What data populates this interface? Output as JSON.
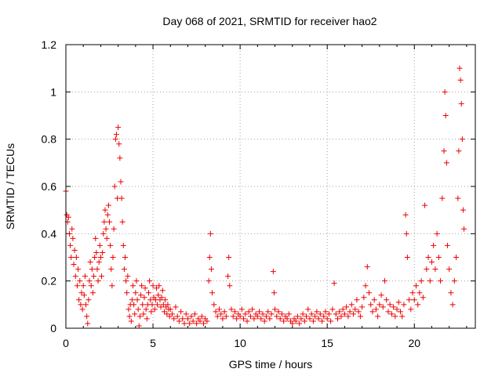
{
  "chart_data": {
    "type": "scatter",
    "title": "Day 068 of 2021, SRMTID for receiver hao2",
    "xlabel": "GPS time / hours",
    "ylabel": "SRMTID / TECUs",
    "xlim": [
      0,
      23.5
    ],
    "ylim": [
      0,
      1.2
    ],
    "xticks": [
      0,
      5,
      10,
      15,
      20
    ],
    "xtick_labels": [
      "0",
      "5",
      "10",
      "15",
      "20"
    ],
    "yticks": [
      0,
      0.2,
      0.4,
      0.6,
      0.8,
      1,
      1.2
    ],
    "ytick_labels": [
      "0",
      "0.2",
      "0.4",
      "0.6",
      "0.8",
      "1",
      "1.2"
    ],
    "grid": true,
    "marker": "plus",
    "color": "#ee0000",
    "series": [
      {
        "name": "SRMTID",
        "points": [
          [
            0.0,
            0.58
          ],
          [
            0.05,
            0.48
          ],
          [
            0.1,
            0.45
          ],
          [
            0.15,
            0.47
          ],
          [
            0.2,
            0.4
          ],
          [
            0.25,
            0.35
          ],
          [
            0.3,
            0.3
          ],
          [
            0.35,
            0.42
          ],
          [
            0.4,
            0.38
          ],
          [
            0.45,
            0.27
          ],
          [
            0.5,
            0.33
          ],
          [
            0.55,
            0.22
          ],
          [
            0.6,
            0.3
          ],
          [
            0.65,
            0.18
          ],
          [
            0.7,
            0.25
          ],
          [
            0.75,
            0.12
          ],
          [
            0.8,
            0.2
          ],
          [
            0.85,
            0.1
          ],
          [
            0.9,
            0.15
          ],
          [
            0.95,
            0.08
          ],
          [
            1.0,
            0.18
          ],
          [
            1.05,
            0.14
          ],
          [
            1.1,
            0.22
          ],
          [
            1.15,
            0.1
          ],
          [
            1.2,
            0.05
          ],
          [
            1.25,
            0.02
          ],
          [
            1.3,
            0.12
          ],
          [
            1.35,
            0.2
          ],
          [
            1.4,
            0.28
          ],
          [
            1.45,
            0.18
          ],
          [
            1.5,
            0.25
          ],
          [
            1.55,
            0.15
          ],
          [
            1.6,
            0.22
          ],
          [
            1.65,
            0.3
          ],
          [
            1.7,
            0.38
          ],
          [
            1.75,
            0.32
          ],
          [
            1.8,
            0.25
          ],
          [
            1.85,
            0.2
          ],
          [
            1.9,
            0.28
          ],
          [
            1.95,
            0.35
          ],
          [
            2.0,
            0.3
          ],
          [
            2.05,
            0.22
          ],
          [
            2.1,
            0.32
          ],
          [
            2.15,
            0.4
          ],
          [
            2.2,
            0.45
          ],
          [
            2.25,
            0.5
          ],
          [
            2.3,
            0.42
          ],
          [
            2.35,
            0.38
          ],
          [
            2.4,
            0.48
          ],
          [
            2.45,
            0.52
          ],
          [
            2.5,
            0.45
          ],
          [
            2.55,
            0.35
          ],
          [
            2.6,
            0.25
          ],
          [
            2.65,
            0.18
          ],
          [
            2.7,
            0.3
          ],
          [
            2.75,
            0.42
          ],
          [
            2.8,
            0.6
          ],
          [
            2.85,
            0.8
          ],
          [
            2.9,
            0.82
          ],
          [
            2.95,
            0.55
          ],
          [
            3.0,
            0.85
          ],
          [
            3.05,
            0.78
          ],
          [
            3.1,
            0.72
          ],
          [
            3.15,
            0.62
          ],
          [
            3.2,
            0.55
          ],
          [
            3.25,
            0.45
          ],
          [
            3.3,
            0.35
          ],
          [
            3.35,
            0.25
          ],
          [
            3.4,
            0.3
          ],
          [
            3.45,
            0.2
          ],
          [
            3.5,
            0.15
          ],
          [
            3.55,
            0.22
          ],
          [
            3.6,
            0.08
          ],
          [
            3.65,
            0.05
          ],
          [
            3.7,
            0.1
          ],
          [
            3.75,
            0.03
          ],
          [
            3.8,
            0.12
          ],
          [
            3.85,
            0.18
          ],
          [
            3.9,
            0.1
          ],
          [
            3.95,
            0.06
          ],
          [
            4.0,
            0.15
          ],
          [
            4.05,
            0.2
          ],
          [
            4.1,
            0.12
          ],
          [
            4.15,
            0.08
          ],
          [
            4.2,
            0.01
          ],
          [
            4.25,
            0.05
          ],
          [
            4.3,
            0.14
          ],
          [
            4.35,
            0.18
          ],
          [
            4.4,
            0.1
          ],
          [
            4.45,
            0.06
          ],
          [
            4.5,
            0.13
          ],
          [
            4.55,
            0.17
          ],
          [
            4.6,
            0.08
          ],
          [
            4.65,
            0.04
          ],
          [
            4.7,
            0.1
          ],
          [
            4.75,
            0.15
          ],
          [
            4.8,
            0.2
          ],
          [
            4.85,
            0.12
          ],
          [
            4.9,
            0.07
          ],
          [
            4.95,
            0.1
          ],
          [
            5.0,
            0.18
          ],
          [
            5.05,
            0.13
          ],
          [
            5.1,
            0.08
          ],
          [
            5.15,
            0.12
          ],
          [
            5.2,
            0.17
          ],
          [
            5.25,
            0.1
          ],
          [
            5.3,
            0.14
          ],
          [
            5.35,
            0.18
          ],
          [
            5.4,
            0.12
          ],
          [
            5.45,
            0.09
          ],
          [
            5.5,
            0.13
          ],
          [
            5.55,
            0.16
          ],
          [
            5.6,
            0.1
          ],
          [
            5.65,
            0.07
          ],
          [
            5.7,
            0.12
          ],
          [
            5.75,
            0.09
          ],
          [
            5.8,
            0.06
          ],
          [
            5.85,
            0.1
          ],
          [
            5.9,
            0.08
          ],
          [
            5.95,
            0.05
          ],
          [
            6.0,
            0.08
          ],
          [
            6.1,
            0.06
          ],
          [
            6.2,
            0.04
          ],
          [
            6.3,
            0.09
          ],
          [
            6.4,
            0.05
          ],
          [
            6.5,
            0.03
          ],
          [
            6.6,
            0.07
          ],
          [
            6.7,
            0.04
          ],
          [
            6.8,
            0.02
          ],
          [
            6.9,
            0.06
          ],
          [
            7.0,
            0.04
          ],
          [
            7.1,
            0.02
          ],
          [
            7.2,
            0.05
          ],
          [
            7.3,
            0.03
          ],
          [
            7.4,
            0.06
          ],
          [
            7.5,
            0.02
          ],
          [
            7.6,
            0.04
          ],
          [
            7.7,
            0.03
          ],
          [
            7.8,
            0.05
          ],
          [
            7.9,
            0.02
          ],
          [
            8.0,
            0.04
          ],
          [
            8.1,
            0.03
          ],
          [
            8.2,
            0.2
          ],
          [
            8.25,
            0.3
          ],
          [
            8.3,
            0.4
          ],
          [
            8.35,
            0.25
          ],
          [
            8.4,
            0.15
          ],
          [
            8.5,
            0.1
          ],
          [
            8.6,
            0.07
          ],
          [
            8.7,
            0.05
          ],
          [
            8.8,
            0.08
          ],
          [
            8.9,
            0.06
          ],
          [
            9.0,
            0.04
          ],
          [
            9.1,
            0.07
          ],
          [
            9.2,
            0.05
          ],
          [
            9.3,
            0.22
          ],
          [
            9.35,
            0.3
          ],
          [
            9.4,
            0.18
          ],
          [
            9.5,
            0.08
          ],
          [
            9.6,
            0.05
          ],
          [
            9.7,
            0.07
          ],
          [
            9.8,
            0.04
          ],
          [
            9.9,
            0.06
          ],
          [
            10.0,
            0.05
          ],
          [
            10.1,
            0.08
          ],
          [
            10.2,
            0.04
          ],
          [
            10.3,
            0.06
          ],
          [
            10.4,
            0.03
          ],
          [
            10.5,
            0.07
          ],
          [
            10.6,
            0.05
          ],
          [
            10.7,
            0.08
          ],
          [
            10.8,
            0.04
          ],
          [
            10.9,
            0.06
          ],
          [
            11.0,
            0.05
          ],
          [
            11.1,
            0.07
          ],
          [
            11.2,
            0.04
          ],
          [
            11.3,
            0.06
          ],
          [
            11.4,
            0.03
          ],
          [
            11.5,
            0.05
          ],
          [
            11.6,
            0.07
          ],
          [
            11.7,
            0.04
          ],
          [
            11.8,
            0.06
          ],
          [
            11.9,
            0.24
          ],
          [
            11.95,
            0.15
          ],
          [
            12.0,
            0.08
          ],
          [
            12.1,
            0.05
          ],
          [
            12.2,
            0.07
          ],
          [
            12.3,
            0.04
          ],
          [
            12.4,
            0.06
          ],
          [
            12.5,
            0.03
          ],
          [
            12.6,
            0.05
          ],
          [
            12.7,
            0.04
          ],
          [
            12.8,
            0.06
          ],
          [
            12.9,
            0.03
          ],
          [
            13.0,
            0.02
          ],
          [
            13.1,
            0.04
          ],
          [
            13.2,
            0.03
          ],
          [
            13.3,
            0.05
          ],
          [
            13.4,
            0.02
          ],
          [
            13.5,
            0.04
          ],
          [
            13.6,
            0.06
          ],
          [
            13.7,
            0.03
          ],
          [
            13.8,
            0.05
          ],
          [
            13.9,
            0.08
          ],
          [
            14.0,
            0.04
          ],
          [
            14.1,
            0.06
          ],
          [
            14.2,
            0.03
          ],
          [
            14.3,
            0.05
          ],
          [
            14.4,
            0.07
          ],
          [
            14.5,
            0.04
          ],
          [
            14.6,
            0.06
          ],
          [
            14.7,
            0.03
          ],
          [
            14.8,
            0.05
          ],
          [
            14.9,
            0.07
          ],
          [
            15.0,
            0.04
          ],
          [
            15.1,
            0.06
          ],
          [
            15.2,
            0.03
          ],
          [
            15.3,
            0.08
          ],
          [
            15.4,
            0.19
          ],
          [
            15.5,
            0.06
          ],
          [
            15.6,
            0.04
          ],
          [
            15.7,
            0.07
          ],
          [
            15.8,
            0.05
          ],
          [
            15.9,
            0.08
          ],
          [
            16.0,
            0.06
          ],
          [
            16.1,
            0.09
          ],
          [
            16.2,
            0.05
          ],
          [
            16.3,
            0.07
          ],
          [
            16.4,
            0.1
          ],
          [
            16.5,
            0.06
          ],
          [
            16.6,
            0.08
          ],
          [
            16.7,
            0.12
          ],
          [
            16.8,
            0.07
          ],
          [
            16.9,
            0.05
          ],
          [
            17.0,
            0.09
          ],
          [
            17.1,
            0.13
          ],
          [
            17.2,
            0.18
          ],
          [
            17.3,
            0.26
          ],
          [
            17.4,
            0.15
          ],
          [
            17.5,
            0.1
          ],
          [
            17.6,
            0.07
          ],
          [
            17.7,
            0.12
          ],
          [
            17.8,
            0.08
          ],
          [
            17.9,
            0.05
          ],
          [
            18.0,
            0.1
          ],
          [
            18.1,
            0.14
          ],
          [
            18.2,
            0.09
          ],
          [
            18.3,
            0.2
          ],
          [
            18.4,
            0.12
          ],
          [
            18.5,
            0.07
          ],
          [
            18.6,
            0.1
          ],
          [
            18.7,
            0.06
          ],
          [
            18.8,
            0.09
          ],
          [
            18.9,
            0.05
          ],
          [
            19.0,
            0.08
          ],
          [
            19.1,
            0.11
          ],
          [
            19.2,
            0.07
          ],
          [
            19.3,
            0.05
          ],
          [
            19.4,
            0.1
          ],
          [
            19.5,
            0.48
          ],
          [
            19.55,
            0.4
          ],
          [
            19.6,
            0.3
          ],
          [
            19.7,
            0.12
          ],
          [
            19.8,
            0.08
          ],
          [
            19.9,
            0.15
          ],
          [
            20.0,
            0.12
          ],
          [
            20.1,
            0.18
          ],
          [
            20.2,
            0.1
          ],
          [
            20.3,
            0.15
          ],
          [
            20.4,
            0.2
          ],
          [
            20.5,
            0.13
          ],
          [
            20.6,
            0.52
          ],
          [
            20.7,
            0.25
          ],
          [
            20.8,
            0.3
          ],
          [
            20.9,
            0.2
          ],
          [
            21.0,
            0.28
          ],
          [
            21.1,
            0.35
          ],
          [
            21.2,
            0.25
          ],
          [
            21.3,
            0.4
          ],
          [
            21.4,
            0.3
          ],
          [
            21.5,
            0.2
          ],
          [
            21.6,
            0.55
          ],
          [
            21.7,
            0.75
          ],
          [
            21.75,
            1.0
          ],
          [
            21.8,
            0.9
          ],
          [
            21.85,
            0.7
          ],
          [
            21.9,
            0.35
          ],
          [
            22.0,
            0.25
          ],
          [
            22.1,
            0.15
          ],
          [
            22.2,
            0.1
          ],
          [
            22.3,
            0.2
          ],
          [
            22.4,
            0.3
          ],
          [
            22.5,
            0.55
          ],
          [
            22.55,
            0.75
          ],
          [
            22.6,
            1.1
          ],
          [
            22.65,
            1.05
          ],
          [
            22.7,
            0.95
          ],
          [
            22.75,
            0.8
          ],
          [
            22.8,
            0.5
          ],
          [
            22.85,
            0.42
          ]
        ]
      }
    ]
  }
}
